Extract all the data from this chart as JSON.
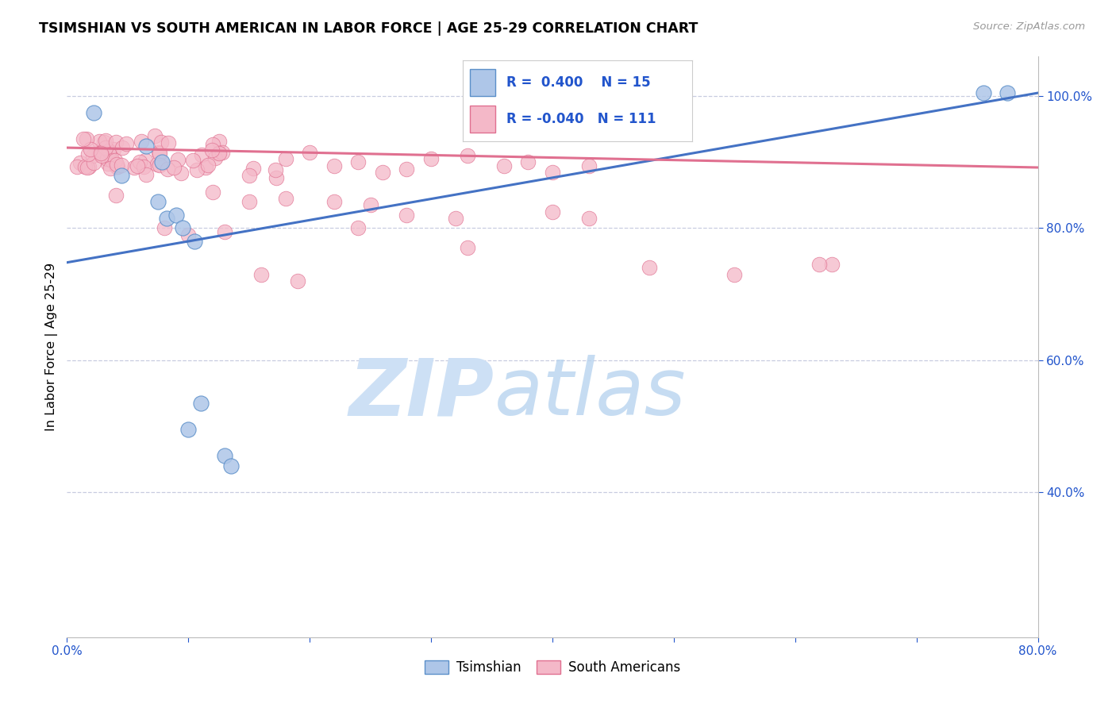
{
  "title": "TSIMSHIAN VS SOUTH AMERICAN IN LABOR FORCE | AGE 25-29 CORRELATION CHART",
  "source": "Source: ZipAtlas.com",
  "ylabel": "In Labor Force | Age 25-29",
  "xlim": [
    0.0,
    0.8
  ],
  "ylim": [
    0.18,
    1.06
  ],
  "xticks": [
    0.0,
    0.1,
    0.2,
    0.3,
    0.4,
    0.5,
    0.6,
    0.7,
    0.8
  ],
  "xticklabels": [
    "0.0%",
    "",
    "",
    "",
    "",
    "",
    "",
    "",
    "80.0%"
  ],
  "yticks_right": [
    0.4,
    0.6,
    0.8,
    1.0
  ],
  "ytick_labels_right": [
    "40.0%",
    "60.0%",
    "80.0%",
    "100.0%"
  ],
  "legend_R_blue": "0.400",
  "legend_N_blue": "15",
  "legend_R_pink": "-0.040",
  "legend_N_pink": "111",
  "blue_fill": "#aec6e8",
  "blue_edge": "#5b8fc9",
  "pink_fill": "#f4b8c8",
  "pink_edge": "#e07090",
  "blue_line": "#4472c4",
  "pink_line": "#e07090",
  "legend_text_color": "#2255cc",
  "grid_color": "#c8cce0",
  "tsimshian_x": [
    0.022,
    0.045,
    0.065,
    0.075,
    0.078,
    0.082,
    0.09,
    0.095,
    0.1,
    0.105,
    0.11,
    0.13,
    0.135,
    0.755,
    0.775
  ],
  "tsimshian_y": [
    0.975,
    0.88,
    0.925,
    0.84,
    0.9,
    0.815,
    0.82,
    0.8,
    0.495,
    0.78,
    0.535,
    0.455,
    0.44,
    1.005,
    1.005
  ],
  "blue_line_x0": 0.0,
  "blue_line_y0": 0.748,
  "blue_line_x1": 0.8,
  "blue_line_y1": 1.005,
  "pink_line_x0": 0.0,
  "pink_line_y0": 0.922,
  "pink_line_x1": 0.8,
  "pink_line_y1": 0.892
}
